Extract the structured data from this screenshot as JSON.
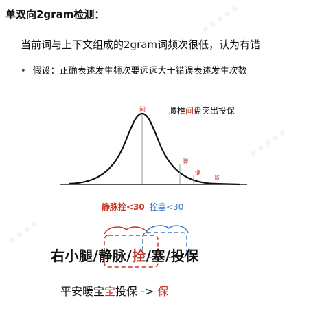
{
  "title": "单双向2gram检测：",
  "line1": "当前词与上下文组成的2gram词频次很低，认为有错",
  "bullet": "假设：正确表述发生频次要远远大于错误表述发生次数",
  "figure": {
    "label_prefix": "腰椎",
    "label_highlight": "间",
    "label_suffix": "盘突出投保",
    "peak_char": "间",
    "tail_char_1": "脚",
    "tail_char_2": "键",
    "tail_char_3": "监"
  },
  "count_a": "静脉拴<30",
  "count_b": "拴塞<30",
  "segment": {
    "p1": "右小腿/",
    "p2": "静脉/",
    "p3": "拴",
    "p4": "/塞/投保"
  },
  "last": {
    "prefix": "平安暖宝",
    "highlight": "宝",
    "middle": "投保 -> ",
    "result": "保"
  }
}
